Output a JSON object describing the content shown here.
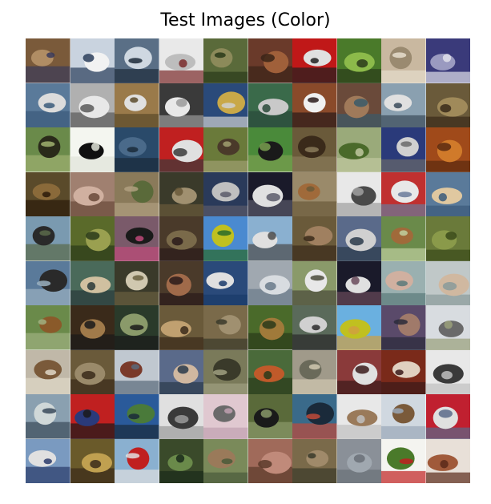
{
  "figure": {
    "title": "Test Images (Color)"
  },
  "grid": {
    "rows": 10,
    "cols": 10,
    "images": [
      {
        "subject": "cat",
        "colors": [
          "#7a5a3a",
          "#b08d64",
          "#3a3a5a"
        ]
      },
      {
        "subject": "ship",
        "colors": [
          "#c9d3df",
          "#f2f2f2",
          "#2a3d5a"
        ]
      },
      {
        "subject": "ship",
        "colors": [
          "#5a6f86",
          "#cfd8e1",
          "#1d2b3a"
        ]
      },
      {
        "subject": "airplane",
        "colors": [
          "#e9e9e9",
          "#bdbdbd",
          "#7a2a2a"
        ]
      },
      {
        "subject": "frog",
        "colors": [
          "#5a6a3a",
          "#8c8a5a",
          "#2a3a1a"
        ]
      },
      {
        "subject": "frog",
        "colors": [
          "#6a3a2a",
          "#a0603a",
          "#3a2418"
        ]
      },
      {
        "subject": "automobile",
        "colors": [
          "#c01818",
          "#e0e0e0",
          "#202020"
        ]
      },
      {
        "subject": "frog",
        "colors": [
          "#4a7a2a",
          "#8cba4a",
          "#2a3a1a"
        ]
      },
      {
        "subject": "cat",
        "colors": [
          "#c9b8a0",
          "#9a8a70",
          "#e6ddcc"
        ]
      },
      {
        "subject": "automobile",
        "colors": [
          "#3a3a7a",
          "#9a9ac0",
          "#e0e0ea"
        ]
      },
      {
        "subject": "airplane",
        "colors": [
          "#5a7a9a",
          "#dcdcdc",
          "#3a5a7a"
        ]
      },
      {
        "subject": "truck",
        "colors": [
          "#b0b0b0",
          "#e8e8e8",
          "#5a5a5a"
        ]
      },
      {
        "subject": "dog",
        "colors": [
          "#9a7a4a",
          "#e0e0e0",
          "#5a4a2a"
        ]
      },
      {
        "subject": "horse",
        "colors": [
          "#3a3a3a",
          "#e8e8e8",
          "#9a9a9a"
        ]
      },
      {
        "subject": "truck",
        "colors": [
          "#2a4a7a",
          "#c9a848",
          "#d0d0d0"
        ]
      },
      {
        "subject": "ship",
        "colors": [
          "#3a6a4a",
          "#c9c9c9",
          "#2a4a3a"
        ]
      },
      {
        "subject": "dog",
        "colors": [
          "#8a4a2a",
          "#f0f0f0",
          "#2a1a1a"
        ]
      },
      {
        "subject": "horse",
        "colors": [
          "#6a4a3a",
          "#a07a5a",
          "#3a5a6a"
        ]
      },
      {
        "subject": "ship",
        "colors": [
          "#8aa0b0",
          "#e0e0e0",
          "#3a4a5a"
        ]
      },
      {
        "subject": "frog",
        "colors": [
          "#6a5a3a",
          "#a08a5a",
          "#3a2a1a"
        ]
      },
      {
        "subject": "horse",
        "colors": [
          "#6a8a4a",
          "#2a2a1a",
          "#a0b070"
        ]
      },
      {
        "subject": "airplane",
        "colors": [
          "#f4f6f0",
          "#101010",
          "#e0e4d8"
        ]
      },
      {
        "subject": "bird",
        "colors": [
          "#2a4a6a",
          "#4a6a8a",
          "#1a2a3a"
        ]
      },
      {
        "subject": "truck",
        "colors": [
          "#c02020",
          "#e0e0e0",
          "#3a3a3a"
        ]
      },
      {
        "subject": "dog",
        "colors": [
          "#6a7a3a",
          "#4a3a2a",
          "#a0a070"
        ]
      },
      {
        "subject": "bird",
        "colors": [
          "#4a8a3a",
          "#1a1a1a",
          "#7aa050"
        ]
      },
      {
        "subject": "cat",
        "colors": [
          "#6a5a3a",
          "#3a2a1a",
          "#8a7a5a"
        ]
      },
      {
        "subject": "airplane",
        "colors": [
          "#9aaa7a",
          "#4a6a2a",
          "#c0c8a0"
        ]
      },
      {
        "subject": "truck",
        "colors": [
          "#2a3a7a",
          "#d0d0d0",
          "#6a6a6a"
        ]
      },
      {
        "subject": "frog",
        "colors": [
          "#a04a1a",
          "#d07a2a",
          "#5a2a10"
        ]
      },
      {
        "subject": "frog",
        "colors": [
          "#5a4a2a",
          "#8a6a3a",
          "#2a1a0a"
        ]
      },
      {
        "subject": "dog",
        "colors": [
          "#a08070",
          "#d0b0a0",
          "#6a4a3a"
        ]
      },
      {
        "subject": "deer",
        "colors": [
          "#8a7a5a",
          "#5a6a3a",
          "#b0a080"
        ]
      },
      {
        "subject": "dog",
        "colors": [
          "#3a3a2a",
          "#a09070",
          "#6a5a3a"
        ]
      },
      {
        "subject": "truck",
        "colors": [
          "#2a3a5a",
          "#c0c0c0",
          "#5a5a6a"
        ]
      },
      {
        "subject": "cat",
        "colors": [
          "#1a1a2a",
          "#e0e0e0",
          "#5a5a6a"
        ]
      },
      {
        "subject": "deer",
        "colors": [
          "#9a8a6a",
          "#a06a3a",
          "#6a5a3a"
        ]
      },
      {
        "subject": "truck",
        "colors": [
          "#e8e8e8",
          "#4a4a4a",
          "#a0a0a0"
        ]
      },
      {
        "subject": "truck",
        "colors": [
          "#c03030",
          "#e8e8e8",
          "#6a7a9a"
        ]
      },
      {
        "subject": "dog",
        "colors": [
          "#5a7a9a",
          "#e0c8a0",
          "#3a5a7a"
        ]
      },
      {
        "subject": "deer",
        "colors": [
          "#7a9ab0",
          "#2a2a2a",
          "#5a6a4a"
        ]
      },
      {
        "subject": "frog",
        "colors": [
          "#5a6a2a",
          "#9aa050",
          "#2a3a1a"
        ]
      },
      {
        "subject": "bird",
        "colors": [
          "#7a5a6a",
          "#1a1a1a",
          "#c04a7a"
        ]
      },
      {
        "subject": "frog",
        "colors": [
          "#4a3a2a",
          "#7a6a4a",
          "#2a1a1a"
        ]
      },
      {
        "subject": "airplane",
        "colors": [
          "#4a8ad0",
          "#c0c020",
          "#2a6a2a"
        ]
      },
      {
        "subject": "truck",
        "colors": [
          "#8ab0d0",
          "#e0e0e0",
          "#4a4a4a"
        ]
      },
      {
        "subject": "cat",
        "colors": [
          "#6a5a3a",
          "#a08060",
          "#3a2a1a"
        ]
      },
      {
        "subject": "truck",
        "colors": [
          "#5a6a8a",
          "#d0d0d0",
          "#2a3a4a"
        ]
      },
      {
        "subject": "horse",
        "colors": [
          "#6a8a4a",
          "#a06a3a",
          "#c0d0a0"
        ]
      },
      {
        "subject": "frog",
        "colors": [
          "#6a7a3a",
          "#8a9a4a",
          "#3a4a1a"
        ]
      },
      {
        "subject": "truck",
        "colors": [
          "#5a7a9a",
          "#2a2a2a",
          "#9ab0c0"
        ]
      },
      {
        "subject": "ship",
        "colors": [
          "#4a6a5a",
          "#d0c0a0",
          "#2a3a3a"
        ]
      },
      {
        "subject": "airplane",
        "colors": [
          "#3a3a2a",
          "#d0c8b0",
          "#6a6040"
        ]
      },
      {
        "subject": "cat",
        "colors": [
          "#4a3a2a",
          "#a06a4a",
          "#2a1a1a"
        ]
      },
      {
        "subject": "ship",
        "colors": [
          "#2a4a7a",
          "#e0e0e0",
          "#1a3a6a"
        ]
      },
      {
        "subject": "ship",
        "colors": [
          "#a0a8b0",
          "#d8dce0",
          "#6a7a8a"
        ]
      },
      {
        "subject": "horse",
        "colors": [
          "#8a9a6a",
          "#e8e8e8",
          "#4a4a3a"
        ]
      },
      {
        "subject": "cat",
        "colors": [
          "#1a1a2a",
          "#e0e0e0",
          "#6a4a5a"
        ]
      },
      {
        "subject": "dog",
        "colors": [
          "#9ab0b0",
          "#d0b0a0",
          "#5a7a7a"
        ]
      },
      {
        "subject": "cat",
        "colors": [
          "#c0c8c8",
          "#d0b8a0",
          "#8a9a9a"
        ]
      },
      {
        "subject": "horse",
        "colors": [
          "#6a8a4a",
          "#8a5a2a",
          "#a0b080"
        ]
      },
      {
        "subject": "dog",
        "colors": [
          "#3a2a1a",
          "#a07a4a",
          "#1a1a1a"
        ]
      },
      {
        "subject": "frog",
        "colors": [
          "#2a3a2a",
          "#8a9a6a",
          "#1a1a1a"
        ]
      },
      {
        "subject": "cat",
        "colors": [
          "#6a5a3a",
          "#c0a070",
          "#3a2a1a"
        ]
      },
      {
        "subject": "frog",
        "colors": [
          "#7a6a4a",
          "#a09070",
          "#3a3a2a"
        ]
      },
      {
        "subject": "bird",
        "colors": [
          "#4a6a2a",
          "#a07a3a",
          "#2a3a1a"
        ]
      },
      {
        "subject": "automobile",
        "colors": [
          "#5a6a5a",
          "#d0d0d0",
          "#2a2a2a"
        ]
      },
      {
        "subject": "bird",
        "colors": [
          "#6ab0e0",
          "#c0c020",
          "#d0a040"
        ]
      },
      {
        "subject": "cat",
        "colors": [
          "#5a4a6a",
          "#a07a6a",
          "#2a2a3a"
        ]
      },
      {
        "subject": "horse",
        "colors": [
          "#d8dce0",
          "#6a6a6a",
          "#9aa07a"
        ]
      },
      {
        "subject": "bird",
        "colors": [
          "#c0b8a8",
          "#7a5a3a",
          "#e0d8c8"
        ]
      },
      {
        "subject": "frog",
        "colors": [
          "#6a5a3a",
          "#9a8a6a",
          "#3a2a1a"
        ]
      },
      {
        "subject": "ship",
        "colors": [
          "#c0c8d0",
          "#7a3a2a",
          "#5a6a7a"
        ]
      },
      {
        "subject": "ship",
        "colors": [
          "#5a6a8a",
          "#d0b8a0",
          "#2a3a4a"
        ]
      },
      {
        "subject": "truck",
        "colors": [
          "#7a7a5a",
          "#3a3a2a",
          "#a0a080"
        ]
      },
      {
        "subject": "bird",
        "colors": [
          "#4a6a3a",
          "#c05a2a",
          "#2a3a1a"
        ]
      },
      {
        "subject": "airplane",
        "colors": [
          "#a09a8a",
          "#6a6a5a",
          "#d0c8b0"
        ]
      },
      {
        "subject": "cat",
        "colors": [
          "#8a3a3a",
          "#e0e0e0",
          "#3a1a1a"
        ]
      },
      {
        "subject": "dog",
        "colors": [
          "#7a2a1a",
          "#e0d0c0",
          "#3a1a1a"
        ]
      },
      {
        "subject": "ship",
        "colors": [
          "#e8e8e8",
          "#3a3a3a",
          "#c0c0c0"
        ]
      },
      {
        "subject": "ship",
        "colors": [
          "#8aa0b0",
          "#d0d8d8",
          "#3a4a5a"
        ]
      },
      {
        "subject": "automobile",
        "colors": [
          "#c02020",
          "#2a3a7a",
          "#1a1a1a"
        ]
      },
      {
        "subject": "automobile",
        "colors": [
          "#2a5a9a",
          "#4a7a3a",
          "#1a2a3a"
        ]
      },
      {
        "subject": "horse",
        "colors": [
          "#e0e0e0",
          "#3a3a3a",
          "#9a9a9a"
        ]
      },
      {
        "subject": "bird",
        "colors": [
          "#e0c8d0",
          "#6a6a6a",
          "#c0a0b0"
        ]
      },
      {
        "subject": "dog",
        "colors": [
          "#5a6a3a",
          "#1a1a1a",
          "#8a9a6a"
        ]
      },
      {
        "subject": "bird",
        "colors": [
          "#3a6a8a",
          "#1a2a3a",
          "#c04a3a"
        ]
      },
      {
        "subject": "horse",
        "colors": [
          "#e8e8e8",
          "#9a7a5a",
          "#c0c0c0"
        ]
      },
      {
        "subject": "ship",
        "colors": [
          "#d0d8e0",
          "#7a5a3a",
          "#9aa8b8"
        ]
      },
      {
        "subject": "truck",
        "colors": [
          "#c02030",
          "#e0e0e0",
          "#5a6a8a"
        ]
      },
      {
        "subject": "airplane",
        "colors": [
          "#7a9ac0",
          "#e0e0e0",
          "#2a3a6a"
        ]
      },
      {
        "subject": "cat",
        "colors": [
          "#6a5a2a",
          "#c0a050",
          "#3a2a1a"
        ]
      },
      {
        "subject": "ship",
        "colors": [
          "#8ab0d0",
          "#c02020",
          "#e0e0e0"
        ]
      },
      {
        "subject": "frog",
        "colors": [
          "#3a4a2a",
          "#6a8a4a",
          "#1a2a1a"
        ]
      },
      {
        "subject": "deer",
        "colors": [
          "#7a8a5a",
          "#9a7a5a",
          "#4a5a3a"
        ]
      },
      {
        "subject": "frog",
        "colors": [
          "#a06a5a",
          "#c08a7a",
          "#5a3a2a"
        ]
      },
      {
        "subject": "frog",
        "colors": [
          "#7a6a4a",
          "#a08a6a",
          "#3a3a2a"
        ]
      },
      {
        "subject": "airplane",
        "colors": [
          "#8a9098",
          "#a0a8b0",
          "#6a7078"
        ]
      },
      {
        "subject": "airplane",
        "colors": [
          "#f4f4f0",
          "#4a7a2a",
          "#c02020"
        ]
      },
      {
        "subject": "horse",
        "colors": [
          "#e8e0d8",
          "#a05a3a",
          "#5a2a1a"
        ]
      }
    ]
  }
}
